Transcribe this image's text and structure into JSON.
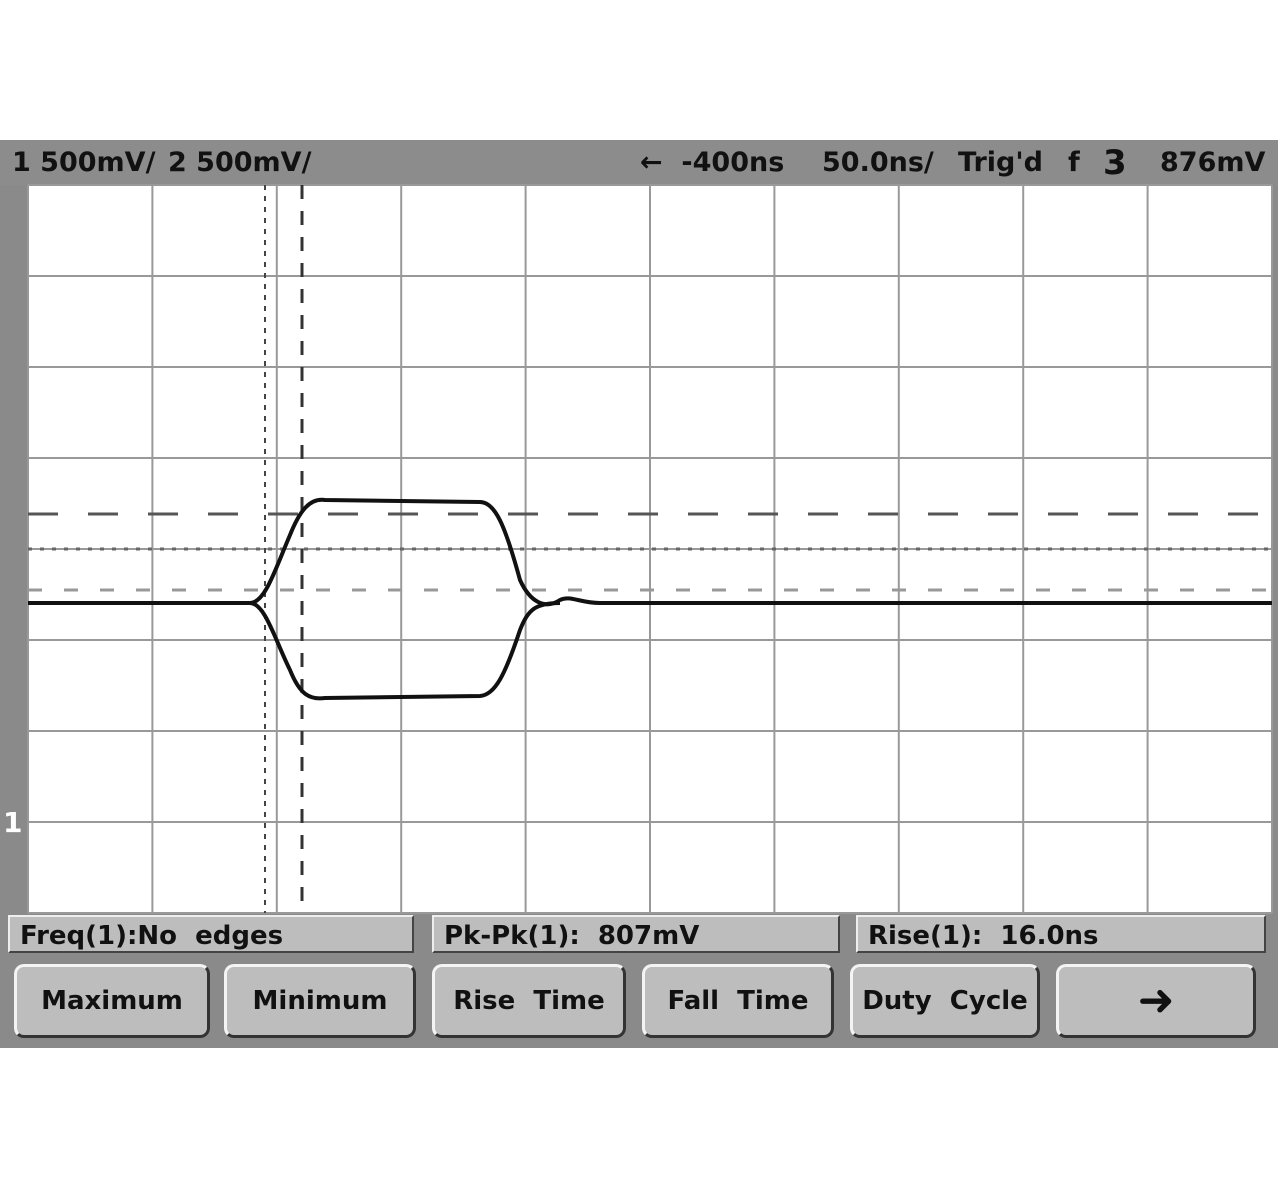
{
  "header": {
    "ch1_scale": "1 500mV/",
    "ch2_scale": "2 500mV/",
    "delay": "←  -400ns",
    "timebase": "50.0ns/",
    "trigger_status": "Trig'd",
    "trigger_slope": "f",
    "trigger_source": "3",
    "trigger_level": "876mV"
  },
  "ground_marker": "1",
  "measurements": [
    {
      "label": "Freq(1):No  edges"
    },
    {
      "label": "Pk-Pk(1):  807mV"
    },
    {
      "label": "Rise(1):  16.0ns"
    }
  ],
  "softkeys": [
    {
      "label": "Maximum"
    },
    {
      "label": "Minimum"
    },
    {
      "label": "Rise  Time"
    },
    {
      "label": "Fall  Time"
    },
    {
      "label": "Duty  Cycle"
    },
    {
      "label": "➜",
      "icon": "next-arrow-icon"
    }
  ],
  "colors": {
    "bezel": "#8a8a8a",
    "grid_bg": "#ffffff",
    "trace": "#111111",
    "button": "#bdbdbd"
  }
}
